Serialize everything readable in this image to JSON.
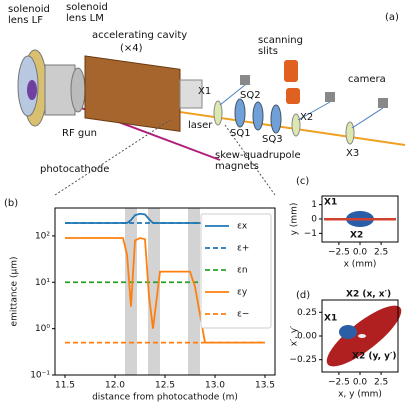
{
  "panel_labels": [
    "(a)",
    "(b)",
    "(c)",
    "(d)"
  ],
  "diagram": {
    "solenoid_lf": "solenoid lens LF",
    "solenoid_lm": "solenoid lens LM",
    "cavity": "accelerating cavity",
    "cavity_count": "(×4)",
    "slits": "scanning slits",
    "camera": "camera",
    "x1": "X1",
    "x2": "X2",
    "x3": "X3",
    "sq1": "SQ1",
    "sq2": "SQ2",
    "sq3": "SQ3",
    "laser": "laser",
    "rf_gun": "RF gun",
    "photocathode": "photocathode",
    "magnets": "skew-quadrupole magnets"
  },
  "chart_data": [
    {
      "type": "line",
      "xlabel": "distance from photocathode (m)",
      "ylabel": "emittance (μm)",
      "log_y": true,
      "xlim": [
        11.4,
        13.6
      ],
      "xticks": [
        11.5,
        {
          "value": 12,
          "label": "12.0"
        },
        12.5,
        {
          "value": 13,
          "label": "13.0"
        },
        13.5
      ],
      "ylim": [
        0.1,
        400
      ],
      "yticks": [
        {
          "value": 0.1,
          "label": "10⁻¹"
        },
        {
          "value": 1,
          "label": "10⁰"
        },
        {
          "value": 10,
          "label": "10¹"
        },
        {
          "value": 100,
          "label": "10²"
        }
      ],
      "shaded_regions": [
        [
          12.1,
          12.22
        ],
        [
          12.33,
          12.45
        ],
        [
          12.73,
          12.85
        ]
      ],
      "shade_color": "#d3d3d3",
      "x": [
        11.5,
        12.08,
        12.12,
        12.16,
        12.2,
        12.25,
        12.3,
        12.34,
        12.38,
        12.45,
        12.55,
        12.75,
        12.8,
        12.85,
        12.9,
        13.5
      ],
      "series": [
        {
          "name": "εx",
          "color": "#1f77b4",
          "linestyle": "solid",
          "values": [
            190,
            190,
            190,
            220,
            280,
            300,
            290,
            230,
            190,
            190,
            190,
            190,
            190,
            190,
            190,
            190
          ]
        },
        {
          "name": "ε+",
          "color": "#1f77b4",
          "linestyle": "dashed",
          "values": [
            190,
            190,
            190,
            190,
            190,
            190,
            190,
            190,
            190,
            190,
            190,
            190,
            190,
            190,
            190,
            190
          ]
        },
        {
          "name": "εn",
          "color": "#2ca02c",
          "linestyle": "dashed",
          "values": [
            10,
            10,
            10,
            10,
            10,
            10,
            10,
            10,
            10,
            10,
            10,
            10,
            10,
            10,
            10,
            10
          ]
        },
        {
          "name": "εy",
          "color": "#ff7f0e",
          "linestyle": "solid",
          "values": [
            90,
            90,
            40,
            3,
            80,
            90,
            85,
            5,
            1,
            17,
            17,
            17,
            8,
            2,
            0.5,
            0.5
          ]
        },
        {
          "name": "ε−",
          "color": "#ff7f0e",
          "linestyle": "dashed",
          "values": [
            0.5,
            0.5,
            0.5,
            0.5,
            0.5,
            0.5,
            0.5,
            0.5,
            0.5,
            0.5,
            0.5,
            0.5,
            0.5,
            0.5,
            0.5,
            0.5
          ]
        }
      ]
    },
    {
      "type": "image",
      "xlabel": "x (mm)",
      "ylabel": "y (mm)",
      "xlim": [
        -4.5,
        4.5
      ],
      "xticks": [
        {
          "value": -2.5,
          "label": "−2.5"
        },
        {
          "value": 0,
          "label": "0.0"
        },
        2.5
      ],
      "ylim": [
        -1.6,
        1.6
      ],
      "yticks": [
        {
          "value": -1,
          "label": "−1"
        },
        0,
        1
      ],
      "annotations": [
        "X1",
        "X2"
      ]
    },
    {
      "type": "image",
      "xlabel": "x, y (mm)",
      "ylabel": "x′, y′",
      "xlim": [
        -4.5,
        4.5
      ],
      "xticks": [
        {
          "value": -2.5,
          "label": "−2.5"
        },
        {
          "value": 0,
          "label": "0.0"
        },
        2.5
      ],
      "ylim": [
        -0.38,
        0.38
      ],
      "yticks": [
        {
          "value": -0.25,
          "label": "−0.25"
        },
        {
          "value": 0,
          "label": "0.00"
        },
        0.25
      ],
      "annotations": [
        "X1",
        "X2 (x, x′)",
        "X2 (y, y′)"
      ]
    }
  ]
}
